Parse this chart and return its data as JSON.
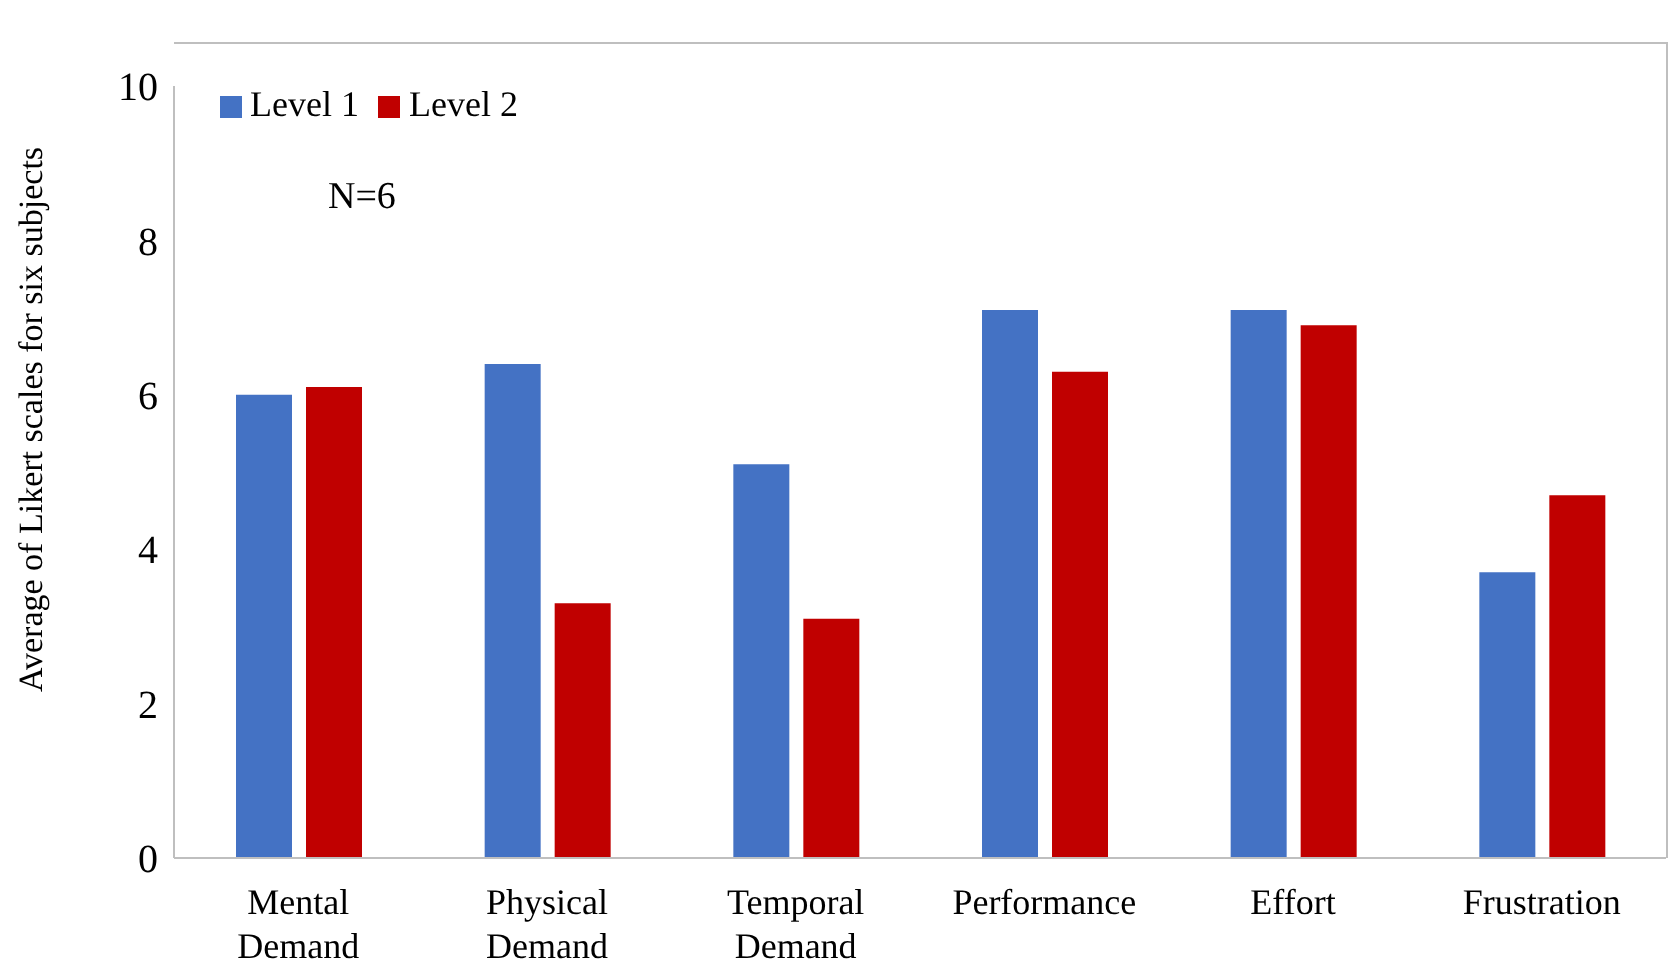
{
  "chart_data": {
    "type": "bar",
    "ylabel": "Average of Likert scales for six subjects",
    "categories": [
      "Mental Demand",
      "Physical Demand",
      "Temporal Demand",
      "Performance",
      "Effort",
      "Frustration"
    ],
    "series": [
      {
        "name": "Level 1",
        "color": "#4472c4",
        "values": [
          6.0,
          6.4,
          5.1,
          7.1,
          7.1,
          3.7
        ]
      },
      {
        "name": "Level 2",
        "color": "#c00000",
        "values": [
          6.1,
          3.3,
          3.1,
          6.3,
          6.9,
          4.7
        ]
      }
    ],
    "ylim": [
      0,
      10
    ],
    "yticks": [
      0,
      2,
      4,
      6,
      8,
      10
    ],
    "legend": "top left",
    "annotations": [
      "N=6"
    ]
  }
}
